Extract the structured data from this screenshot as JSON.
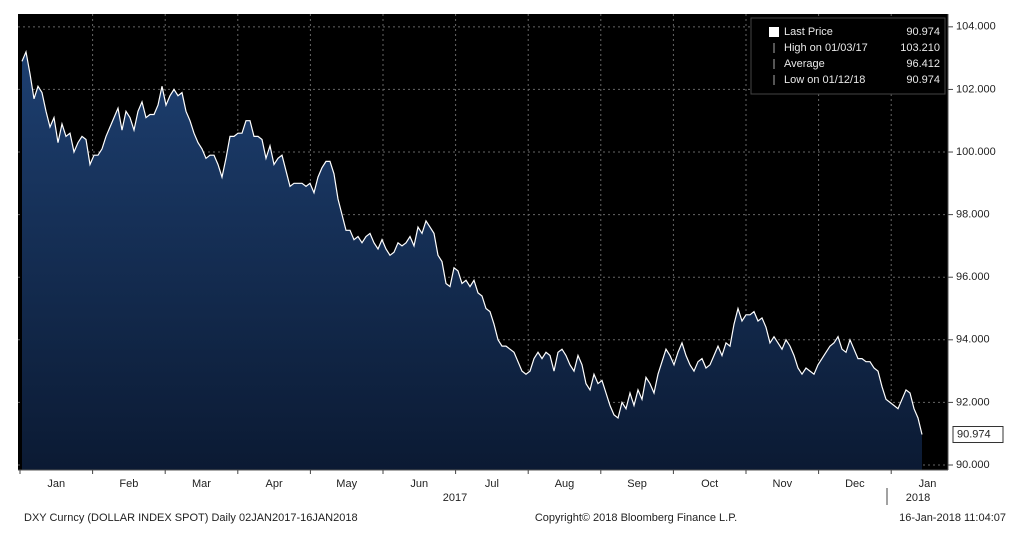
{
  "chart_data": {
    "type": "area",
    "values": [
      102.9,
      103.2,
      102.5,
      101.7,
      102.1,
      101.9,
      101.3,
      100.8,
      101.1,
      100.3,
      100.9,
      100.5,
      100.6,
      100.0,
      100.3,
      100.5,
      100.4,
      99.6,
      99.9,
      99.9,
      100.1,
      100.5,
      100.8,
      101.1,
      101.4,
      100.7,
      101.3,
      101.1,
      100.7,
      101.3,
      101.6,
      101.1,
      101.2,
      101.2,
      101.5,
      102.1,
      101.5,
      101.8,
      102.0,
      101.8,
      101.9,
      101.3,
      101.0,
      100.6,
      100.3,
      100.1,
      99.8,
      99.9,
      99.9,
      99.6,
      99.2,
      99.8,
      100.5,
      100.5,
      100.6,
      100.6,
      101.0,
      101.0,
      100.5,
      100.5,
      100.4,
      99.8,
      100.2,
      99.6,
      99.8,
      99.9,
      99.4,
      98.9,
      99.0,
      99.0,
      99.0,
      98.9,
      99.0,
      98.7,
      99.2,
      99.5,
      99.7,
      99.7,
      99.3,
      98.5,
      98.0,
      97.5,
      97.5,
      97.2,
      97.3,
      97.1,
      97.3,
      97.4,
      97.1,
      96.9,
      97.2,
      96.9,
      96.7,
      96.8,
      97.1,
      97.0,
      97.1,
      97.3,
      97.0,
      97.6,
      97.4,
      97.8,
      97.6,
      97.4,
      96.7,
      96.5,
      95.8,
      95.7,
      96.3,
      96.2,
      95.8,
      95.9,
      95.7,
      95.9,
      95.5,
      95.4,
      95.0,
      94.9,
      94.5,
      94.0,
      93.8,
      93.8,
      93.7,
      93.6,
      93.3,
      93.0,
      92.9,
      93.0,
      93.4,
      93.6,
      93.4,
      93.6,
      93.5,
      93.0,
      93.6,
      93.7,
      93.5,
      93.2,
      93.0,
      93.5,
      93.2,
      92.6,
      92.4,
      92.9,
      92.6,
      92.7,
      92.3,
      91.9,
      91.6,
      91.5,
      92.0,
      91.8,
      92.3,
      91.9,
      92.4,
      92.1,
      92.8,
      92.6,
      92.3,
      92.9,
      93.3,
      93.7,
      93.5,
      93.2,
      93.6,
      93.9,
      93.5,
      93.2,
      93.0,
      93.3,
      93.4,
      93.1,
      93.2,
      93.5,
      93.8,
      93.5,
      93.9,
      93.8,
      94.5,
      95.0,
      94.6,
      94.8,
      94.8,
      94.9,
      94.6,
      94.7,
      94.4,
      93.9,
      94.1,
      93.9,
      93.7,
      94.0,
      93.8,
      93.5,
      93.1,
      92.9,
      93.1,
      93.0,
      92.9,
      93.2,
      93.4,
      93.6,
      93.8,
      93.9,
      94.1,
      93.7,
      93.6,
      94.0,
      93.7,
      93.4,
      93.4,
      93.3,
      93.3,
      93.1,
      93.0,
      92.5,
      92.1,
      92.0,
      91.9,
      91.8,
      92.1,
      92.4,
      92.3,
      91.8,
      91.5,
      90.974
    ],
    "months": [
      "Jan",
      "Feb",
      "Mar",
      "Apr",
      "May",
      "Jun",
      "Jul",
      "Aug",
      "Sep",
      "Oct",
      "Nov",
      "Dec",
      "Jan"
    ],
    "years": [
      "2017",
      "2018"
    ],
    "ylim": [
      89.84,
      104.41
    ],
    "yticks": [
      {
        "value": 90,
        "label": "90.000"
      },
      {
        "value": 92,
        "label": "92.000"
      },
      {
        "value": 94,
        "label": "94.000"
      },
      {
        "value": 96,
        "label": "96.000"
      },
      {
        "value": 98,
        "label": "98.000"
      },
      {
        "value": 100,
        "label": "100.000"
      },
      {
        "value": 102,
        "label": "102.000"
      },
      {
        "value": 104,
        "label": "104.000"
      }
    ],
    "grid": true,
    "line_color": "#ffffff",
    "fill_color": "#13305a",
    "legend": [
      {
        "name": "Last Price",
        "value": "90.974"
      },
      {
        "name": "High on 01/03/17",
        "value": "103.210"
      },
      {
        "name": "Average",
        "value": "96.412"
      },
      {
        "name": "Low on 01/12/18",
        "value": "90.974"
      }
    ],
    "last_label": "90.974",
    "footer": {
      "left": "DXY Curncy (DOLLAR INDEX SPOT)  Daily 02JAN2017-16JAN2018",
      "center": "Copyright© 2018 Bloomberg Finance L.P.",
      "right": "16-Jan-2018 11:04:07"
    }
  }
}
